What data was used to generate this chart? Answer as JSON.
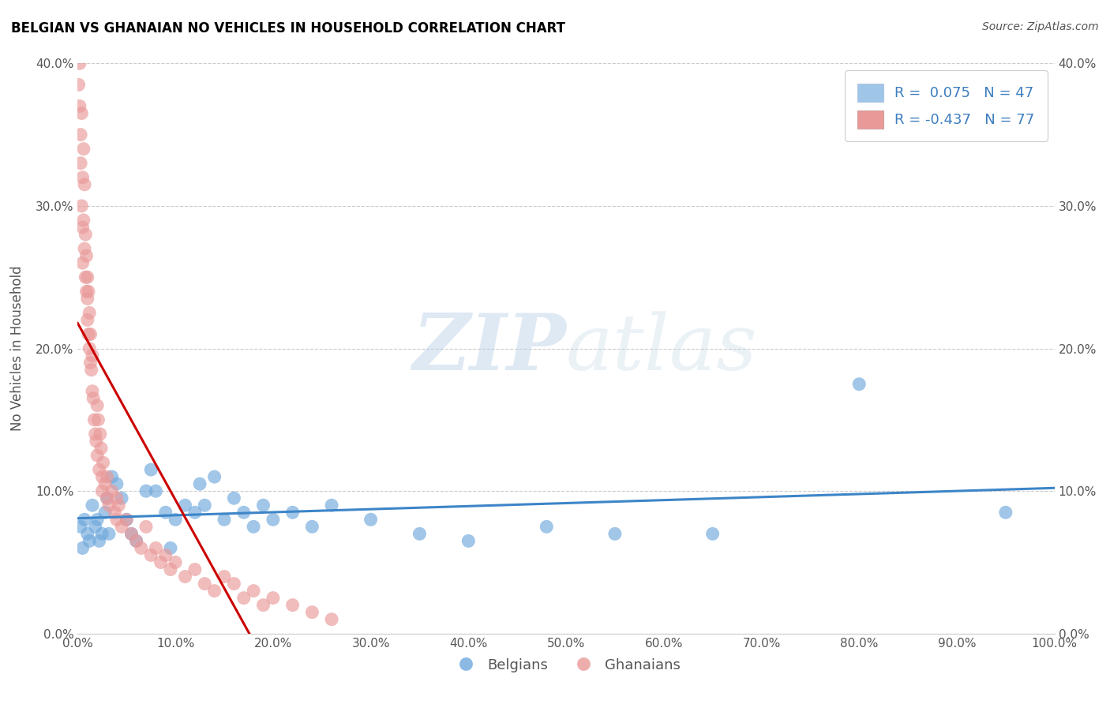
{
  "title": "BELGIAN VS GHANAIAN NO VEHICLES IN HOUSEHOLD CORRELATION CHART",
  "source": "Source: ZipAtlas.com",
  "ylabel": "No Vehicles in Household",
  "xlabel": "",
  "watermark_zip": "ZIP",
  "watermark_atlas": "atlas",
  "xlim": [
    0,
    100
  ],
  "ylim": [
    0,
    40
  ],
  "blue_color": "#6fa8dc",
  "pink_color": "#ea9999",
  "blue_line_color": "#3d85c8",
  "pink_line_color": "#cc0000",
  "legend_blue_color": "#9fc5e8",
  "legend_pink_color": "#ea9999",
  "R_blue": 0.075,
  "N_blue": 47,
  "R_pink": -0.437,
  "N_pink": 77,
  "blue_scatter_x": [
    0.3,
    0.5,
    0.7,
    1.0,
    1.2,
    1.5,
    1.8,
    2.0,
    2.2,
    2.5,
    2.8,
    3.0,
    3.2,
    3.5,
    4.0,
    4.5,
    5.0,
    5.5,
    6.0,
    7.0,
    7.5,
    8.0,
    9.0,
    9.5,
    10.0,
    11.0,
    12.0,
    12.5,
    13.0,
    14.0,
    15.0,
    16.0,
    17.0,
    18.0,
    19.0,
    20.0,
    22.0,
    24.0,
    26.0,
    30.0,
    35.0,
    40.0,
    48.0,
    55.0,
    65.0,
    80.0,
    95.0
  ],
  "blue_scatter_y": [
    7.5,
    6.0,
    8.0,
    7.0,
    6.5,
    9.0,
    7.5,
    8.0,
    6.5,
    7.0,
    8.5,
    9.5,
    7.0,
    11.0,
    10.5,
    9.5,
    8.0,
    7.0,
    6.5,
    10.0,
    11.5,
    10.0,
    8.5,
    6.0,
    8.0,
    9.0,
    8.5,
    10.5,
    9.0,
    11.0,
    8.0,
    9.5,
    8.5,
    7.5,
    9.0,
    8.0,
    8.5,
    7.5,
    9.0,
    8.0,
    7.0,
    6.5,
    7.5,
    7.0,
    7.0,
    17.5,
    8.5
  ],
  "pink_scatter_x": [
    0.1,
    0.2,
    0.2,
    0.3,
    0.3,
    0.4,
    0.4,
    0.5,
    0.5,
    0.5,
    0.6,
    0.6,
    0.7,
    0.7,
    0.8,
    0.8,
    0.9,
    0.9,
    1.0,
    1.0,
    1.0,
    1.1,
    1.1,
    1.2,
    1.2,
    1.3,
    1.3,
    1.4,
    1.5,
    1.5,
    1.6,
    1.7,
    1.8,
    1.9,
    2.0,
    2.0,
    2.1,
    2.2,
    2.3,
    2.4,
    2.5,
    2.5,
    2.6,
    2.8,
    3.0,
    3.0,
    3.2,
    3.5,
    3.8,
    4.0,
    4.0,
    4.2,
    4.5,
    5.0,
    5.5,
    6.0,
    6.5,
    7.0,
    7.5,
    8.0,
    8.5,
    9.0,
    9.5,
    10.0,
    11.0,
    12.0,
    13.0,
    14.0,
    15.0,
    16.0,
    17.0,
    18.0,
    19.0,
    20.0,
    22.0,
    24.0,
    26.0
  ],
  "pink_scatter_y": [
    38.5,
    40.0,
    37.0,
    35.0,
    33.0,
    36.5,
    30.0,
    28.5,
    26.0,
    32.0,
    34.0,
    29.0,
    27.0,
    31.5,
    25.0,
    28.0,
    24.0,
    26.5,
    22.0,
    25.0,
    23.5,
    21.0,
    24.0,
    20.0,
    22.5,
    19.0,
    21.0,
    18.5,
    17.0,
    19.5,
    16.5,
    15.0,
    14.0,
    13.5,
    16.0,
    12.5,
    15.0,
    11.5,
    14.0,
    13.0,
    11.0,
    10.0,
    12.0,
    10.5,
    9.5,
    11.0,
    9.0,
    10.0,
    8.5,
    9.5,
    8.0,
    9.0,
    7.5,
    8.0,
    7.0,
    6.5,
    6.0,
    7.5,
    5.5,
    6.0,
    5.0,
    5.5,
    4.5,
    5.0,
    4.0,
    4.5,
    3.5,
    3.0,
    4.0,
    3.5,
    2.5,
    3.0,
    2.0,
    2.5,
    2.0,
    1.5,
    1.0
  ],
  "background_color": "#ffffff",
  "grid_color": "#cccccc",
  "title_color": "#000000",
  "axis_label_color": "#555555",
  "tick_label_color": "#555555",
  "source_color": "#555555",
  "legend_text_color": "#3d7ebf",
  "bottom_legend_color": "#555555"
}
